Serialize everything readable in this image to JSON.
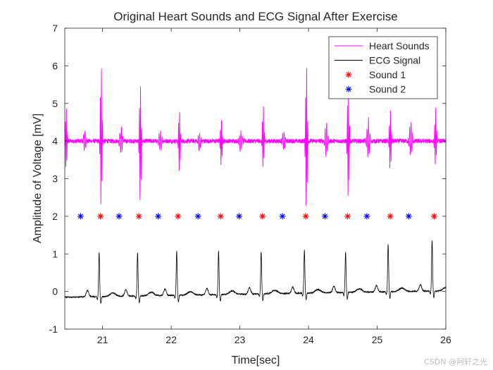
{
  "chart_data": {
    "type": "line",
    "title": "Original Heart Sounds and ECG Signal After Exercise",
    "xlabel": "Time[sec]",
    "ylabel": "Amplitude of Voltage [mV]",
    "xlim": [
      20.45,
      26
    ],
    "ylim": [
      -1,
      7
    ],
    "xticks": [
      21,
      22,
      23,
      24,
      25,
      26
    ],
    "yticks": [
      -1,
      0,
      1,
      2,
      3,
      4,
      5,
      6,
      7
    ],
    "grid": false,
    "legend_position": "top-right",
    "series": [
      {
        "name": "Heart Sounds",
        "kind": "line",
        "color": "#ff00ff",
        "baseline": 4.0,
        "s1_bursts": [
          {
            "t": 20.47,
            "max": 4.9,
            "min": 3.2
          },
          {
            "t": 20.98,
            "max": 6.1,
            "min": 2.15
          },
          {
            "t": 21.55,
            "max": 5.55,
            "min": 2.25
          },
          {
            "t": 22.12,
            "max": 4.9,
            "min": 3.1
          },
          {
            "t": 22.73,
            "max": 4.65,
            "min": 3.25
          },
          {
            "t": 23.34,
            "max": 4.95,
            "min": 3.2
          },
          {
            "t": 23.97,
            "max": 6.15,
            "min": 2.1
          },
          {
            "t": 24.58,
            "max": 5.65,
            "min": 2.35
          },
          {
            "t": 25.19,
            "max": 4.85,
            "min": 3.15
          },
          {
            "t": 25.85,
            "max": 4.9,
            "min": 3.35
          }
        ],
        "s2_bursts": [
          {
            "t": 20.74,
            "max": 4.25,
            "min": 3.75
          },
          {
            "t": 21.27,
            "max": 4.4,
            "min": 3.65
          },
          {
            "t": 21.84,
            "max": 4.25,
            "min": 3.7
          },
          {
            "t": 22.41,
            "max": 4.2,
            "min": 3.75
          },
          {
            "t": 23.01,
            "max": 4.25,
            "min": 3.7
          },
          {
            "t": 23.64,
            "max": 4.25,
            "min": 3.75
          },
          {
            "t": 24.26,
            "max": 4.5,
            "min": 3.6
          },
          {
            "t": 24.87,
            "max": 4.6,
            "min": 3.55
          },
          {
            "t": 25.49,
            "max": 4.55,
            "min": 3.6
          }
        ]
      },
      {
        "name": "ECG Signal",
        "kind": "line",
        "color": "#000000",
        "r_peaks": [
          {
            "t": 20.95,
            "r": 1.02
          },
          {
            "t": 21.51,
            "r": 1.0
          },
          {
            "t": 22.08,
            "r": 1.02
          },
          {
            "t": 22.69,
            "r": 1.0
          },
          {
            "t": 23.31,
            "r": 0.97
          },
          {
            "t": 23.94,
            "r": 1.0
          },
          {
            "t": 24.54,
            "r": 0.92
          },
          {
            "t": 25.16,
            "r": 1.12
          },
          {
            "t": 25.8,
            "r": 1.2
          }
        ],
        "baseline_start": -0.15,
        "baseline_end": 0.02
      },
      {
        "name": "Sound 1",
        "kind": "marker",
        "marker": "asterisk",
        "color": "#ff0000",
        "x": [
          20.97,
          21.53,
          22.1,
          22.72,
          23.33,
          23.96,
          24.57,
          25.19,
          25.83
        ],
        "y": [
          2,
          2,
          2,
          2,
          2,
          2,
          2,
          2,
          2
        ]
      },
      {
        "name": "Sound 2",
        "kind": "marker",
        "marker": "asterisk",
        "color": "#0000ff",
        "x": [
          20.68,
          21.24,
          21.81,
          22.39,
          22.99,
          23.62,
          24.24,
          24.85,
          25.46
        ],
        "y": [
          2,
          2,
          2,
          2,
          2,
          2,
          2,
          2,
          2
        ]
      }
    ]
  },
  "watermark": "CSDN @阿轩之光"
}
